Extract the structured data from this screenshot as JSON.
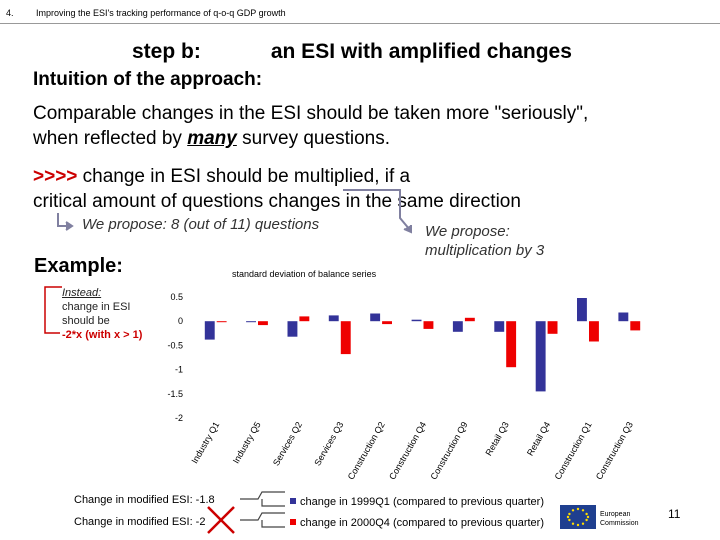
{
  "header": {
    "number": "4.",
    "title": "Improving the ESI's tracking performance of q-o-q GDP growth"
  },
  "slide": {
    "step_label": "step b:",
    "step_title": "an ESI with amplified changes",
    "intuition": "Intuition of the approach:",
    "para_line1": "Comparable changes in the ESI should be taken more \"seriously\",",
    "para_line2_a": "when reflected by ",
    "para_line2_em": "many",
    "para_line2_b": " survey questions.",
    "conc_arrows": ">>>>",
    "conc_line1": " change in ESI should be multiplied, if a",
    "conc_line2": "critical amount of questions changes in the same direction",
    "proposal_questions": "We propose: 8 (out of 11) questions",
    "proposal_mult_1": "We propose:",
    "proposal_mult_2": "multiplication by 3",
    "example": "Example:",
    "instead_1": "Instead:",
    "instead_2": "change in ESI",
    "instead_3": "should be",
    "instead_4": "-2*x (with x > 1)",
    "change_mod_1": "Change in modified ESI: -1.8",
    "change_mod_2": "Change in modified ESI: -2",
    "page_number": "11",
    "logo_1": "European",
    "logo_2": "Commission"
  },
  "chart_data": {
    "type": "bar",
    "title": "standard deviation of balance series",
    "ylim": [
      -2,
      0.5
    ],
    "yticks": [
      0.5,
      0,
      -0.5,
      -1,
      -1.5,
      -2
    ],
    "ytick_labels": [
      "0.5",
      "0",
      "-0.5",
      "-1",
      "-1.5",
      "-2"
    ],
    "grid": false,
    "categories": [
      "Industry Q1",
      "Industry Q5",
      "Services Q2",
      "Services Q3",
      "Construction Q2",
      "Construction Q4",
      "Construction Q9",
      "Retail Q3",
      "Retail Q4",
      "Construction Q1",
      "Construction Q3"
    ],
    "series": [
      {
        "name": "change in 1999Q1 (compared to previous quarter)",
        "color": "#333399",
        "values": [
          -0.38,
          -0.02,
          -0.32,
          0.12,
          0.16,
          0.03,
          -0.22,
          -0.22,
          -1.45,
          0.48,
          0.18
        ]
      },
      {
        "name": "change in 2000Q4 (compared to previous quarter)",
        "color": "#ee0000",
        "values": [
          -0.02,
          -0.08,
          0.1,
          -0.68,
          -0.06,
          -0.16,
          0.07,
          -0.95,
          -0.26,
          -0.42,
          -0.19
        ]
      }
    ]
  }
}
